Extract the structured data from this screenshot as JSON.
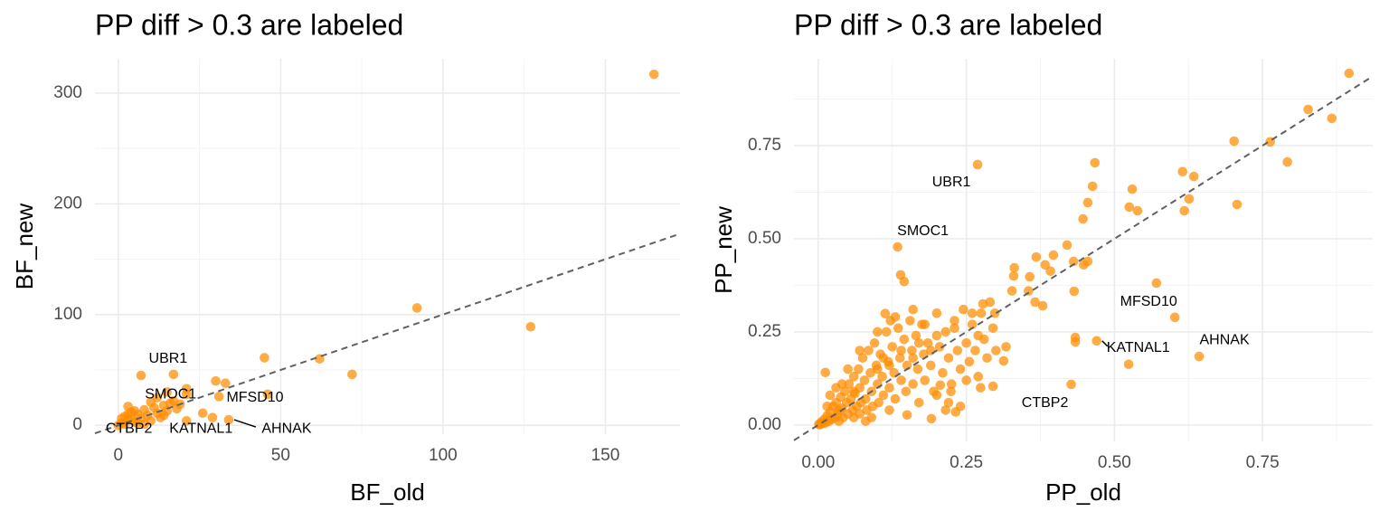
{
  "chart_data": [
    {
      "type": "scatter",
      "title": "PP diff > 0.3 are labeled",
      "xlabel": "BF_old",
      "ylabel": "BF_new",
      "color": "#ff8c00",
      "grid": true,
      "diagonal": true,
      "xlim": [
        -7.2,
        173
      ],
      "ylim": [
        -8,
        331
      ],
      "xticks": [
        0,
        50,
        100,
        150
      ],
      "yticks": [
        0,
        100,
        200,
        300
      ],
      "xminor": [
        25,
        75,
        125
      ],
      "yminor": [
        50,
        150,
        250
      ],
      "x": [
        17,
        15,
        46,
        3,
        21,
        34,
        165,
        92,
        127,
        72,
        62,
        45,
        30,
        33,
        31,
        29,
        26,
        21,
        7,
        21,
        0,
        1,
        2,
        3,
        4,
        5,
        6,
        7,
        8,
        9,
        10,
        11,
        12,
        13,
        14,
        15,
        16,
        17,
        18,
        19,
        2,
        4,
        6,
        8,
        5,
        12,
        10,
        14,
        3,
        1
      ],
      "values": [
        46,
        30,
        28,
        5,
        4,
        5,
        317,
        106,
        89,
        46,
        60,
        61,
        40,
        38,
        26,
        7,
        11,
        28,
        45,
        33,
        0,
        2,
        8,
        17,
        12,
        3,
        10,
        6,
        14,
        9,
        4,
        16,
        11,
        7,
        18,
        13,
        20,
        22,
        15,
        19,
        1,
        6,
        2,
        1,
        13,
        25,
        21,
        9,
        10,
        6
      ],
      "annotations": [
        {
          "text": "UBR1",
          "x": 17,
          "y": 46
        },
        {
          "text": "SMOC1",
          "x": 15,
          "y": 30
        },
        {
          "text": "MFSD10",
          "x": 46,
          "y": 28
        },
        {
          "text": "CTBP2",
          "x": 3,
          "y": 5
        },
        {
          "text": "KATNAL1",
          "x": 21,
          "y": 4
        },
        {
          "text": "AHNAK",
          "x": 34,
          "y": 5
        }
      ]
    },
    {
      "type": "scatter",
      "title": "PP diff > 0.3 are labeled",
      "xlabel": "PP_old",
      "ylabel": "PP_new",
      "color": "#ff8c00",
      "grid": true,
      "diagonal": true,
      "xlim": [
        -0.041,
        0.936
      ],
      "ylim": [
        -0.044,
        0.983
      ],
      "xticks": [
        {
          "value": 0,
          "label": "0.00"
        },
        {
          "value": 0.25,
          "label": "0.25"
        },
        {
          "value": 0.5,
          "label": "0.50"
        },
        {
          "value": 0.75,
          "label": "0.75"
        }
      ],
      "yticks": [
        {
          "value": 0,
          "label": "0.00"
        },
        {
          "value": 0.25,
          "label": "0.25"
        },
        {
          "value": 0.5,
          "label": "0.50"
        },
        {
          "value": 0.75,
          "label": "0.75"
        }
      ],
      "xminor": [
        0.125,
        0.375,
        0.625,
        0.875
      ],
      "yminor": [
        0.125,
        0.375,
        0.625,
        0.875
      ],
      "x": [
        0.269,
        0.134,
        0.602,
        0.47,
        0.643,
        0.427,
        0.896,
        0.827,
        0.867,
        0.763,
        0.792,
        0.707,
        0.702,
        0.615,
        0.634,
        0.626,
        0.618,
        0.53,
        0.525,
        0.539,
        0.467,
        0.463,
        0.455,
        0.447,
        0.571,
        0.524,
        0.434,
        0.434,
        0.432,
        0.42,
        0.431,
        0.455,
        0.448,
        0.397,
        0.368,
        0.383,
        0.392,
        0.379,
        0.366,
        0.357,
        0.331,
        0.33,
        0.327,
        0.355,
        0.298,
        0.313,
        0.295,
        0.274,
        0.317,
        0.278,
        0.139,
        0.145,
        0.113,
        0.122,
        0.012,
        0.206,
        0.224,
        0.15,
        0.191,
        0.215,
        0.232,
        0.24,
        0.001,
        0.003,
        0.005,
        0.008,
        0.01,
        0.012,
        0.015,
        0.018,
        0.02,
        0.022,
        0.025,
        0.028,
        0.03,
        0.033,
        0.035,
        0.038,
        0.04,
        0.042,
        0.045,
        0.048,
        0.05,
        0.052,
        0.055,
        0.058,
        0.06,
        0.062,
        0.065,
        0.068,
        0.07,
        0.072,
        0.075,
        0.078,
        0.08,
        0.082,
        0.085,
        0.088,
        0.09,
        0.092,
        0.095,
        0.098,
        0.1,
        0.102,
        0.105,
        0.108,
        0.11,
        0.115,
        0.118,
        0.12,
        0.125,
        0.128,
        0.13,
        0.135,
        0.138,
        0.14,
        0.145,
        0.148,
        0.15,
        0.155,
        0.158,
        0.16,
        0.165,
        0.168,
        0.17,
        0.175,
        0.178,
        0.18,
        0.185,
        0.19,
        0.195,
        0.2,
        0.205,
        0.21,
        0.215,
        0.22,
        0.225,
        0.23,
        0.235,
        0.24,
        0.245,
        0.25,
        0.255,
        0.26,
        0.265,
        0.27,
        0.275,
        0.28,
        0.285,
        0.29,
        0.295,
        0.3,
        0.02,
        0.04,
        0.06,
        0.09,
        0.12,
        0.05,
        0.07,
        0.1,
        0.03,
        0.08,
        0.11,
        0.13,
        0.16,
        0.2,
        0.18,
        0.22,
        0.25,
        0.27,
        0.015,
        0.035,
        0.06,
        0.1,
        0.14,
        0.17,
        0.2,
        0.23,
        0.26,
        0.07,
        0.12,
        0.16,
        0.19
      ],
      "values": [
        0.699,
        0.478,
        0.289,
        0.226,
        0.184,
        0.109,
        0.944,
        0.847,
        0.823,
        0.76,
        0.706,
        0.592,
        0.762,
        0.68,
        0.667,
        0.607,
        0.575,
        0.633,
        0.585,
        0.575,
        0.704,
        0.641,
        0.597,
        0.553,
        0.381,
        0.163,
        0.235,
        0.223,
        0.359,
        0.483,
        0.439,
        0.439,
        0.43,
        0.456,
        0.451,
        0.43,
        0.413,
        0.32,
        0.33,
        0.398,
        0.422,
        0.4,
        0.36,
        0.36,
        0.3,
        0.172,
        0.104,
        0.1,
        0.21,
        0.325,
        0.403,
        0.385,
        0.299,
        0.28,
        0.141,
        0.107,
        0.09,
        0.027,
        0.017,
        0.04,
        0.035,
        0.05,
        0.002,
        0.001,
        0.008,
        0.004,
        0.015,
        0.006,
        0.025,
        0.01,
        0.035,
        0.015,
        0.05,
        0.02,
        0.06,
        0.03,
        0.01,
        0.075,
        0.045,
        0.02,
        0.09,
        0.06,
        0.03,
        0.11,
        0.07,
        0.04,
        0.13,
        0.085,
        0.05,
        0.15,
        0.1,
        0.06,
        0.18,
        0.12,
        0.07,
        0.04,
        0.2,
        0.14,
        0.09,
        0.05,
        0.22,
        0.16,
        0.11,
        0.06,
        0.19,
        0.13,
        0.08,
        0.25,
        0.17,
        0.1,
        0.21,
        0.14,
        0.07,
        0.26,
        0.18,
        0.12,
        0.23,
        0.09,
        0.16,
        0.28,
        0.2,
        0.11,
        0.24,
        0.15,
        0.06,
        0.27,
        0.19,
        0.12,
        0.22,
        0.16,
        0.09,
        0.3,
        0.21,
        0.14,
        0.25,
        0.18,
        0.11,
        0.28,
        0.2,
        0.15,
        0.31,
        0.22,
        0.17,
        0.27,
        0.2,
        0.13,
        0.3,
        0.23,
        0.18,
        0.33,
        0.26,
        0.2,
        0.08,
        0.11,
        0.02,
        0.02,
        0.04,
        0.15,
        0.2,
        0.25,
        0.1,
        0.01,
        0.18,
        0.29,
        0.31,
        0.08,
        0.27,
        0.06,
        0.12,
        0.24,
        0.05,
        0.04,
        0.09,
        0.15,
        0.2,
        0.22,
        0.24,
        0.26,
        0.3,
        0.03,
        0.16,
        0.18,
        0.2
      ],
      "annotations": [
        {
          "text": "UBR1",
          "x": 0.269,
          "y": 0.699
        },
        {
          "text": "SMOC1",
          "x": 0.134,
          "y": 0.478
        },
        {
          "text": "MFSD10",
          "x": 0.602,
          "y": 0.289
        },
        {
          "text": "KATNAL1",
          "x": 0.47,
          "y": 0.226
        },
        {
          "text": "AHNAK",
          "x": 0.643,
          "y": 0.184
        },
        {
          "text": "CTBP2",
          "x": 0.427,
          "y": 0.109
        }
      ]
    }
  ]
}
